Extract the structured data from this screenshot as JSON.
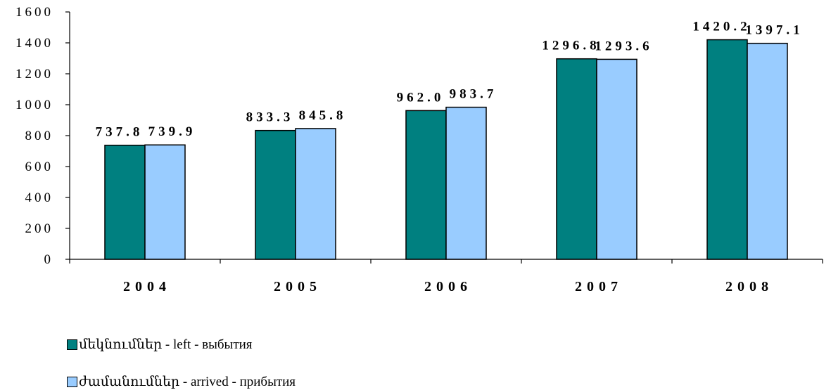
{
  "chart_data": {
    "type": "bar",
    "categories": [
      "2004",
      "2005",
      "2006",
      "2007",
      "2008"
    ],
    "series": [
      {
        "name": "մեկնումներ - left - выбытия",
        "values": [
          737.8,
          833.3,
          962.0,
          1296.8,
          1420.2
        ],
        "color": "#008080",
        "labels": [
          "737.8",
          "833.3",
          "962.0",
          "1296.8",
          "1420.2"
        ]
      },
      {
        "name": "ժամանումներ - arrived - прибытия",
        "values": [
          739.9,
          845.8,
          983.7,
          1293.6,
          1397.1
        ],
        "color": "#99CCFF",
        "labels": [
          "739.9",
          "845.8",
          "983.7",
          "1293.6",
          "1397.1"
        ]
      }
    ],
    "yticks": [
      "0",
      "200",
      "400",
      "600",
      "800",
      "1000",
      "1200",
      "1400",
      "1600"
    ],
    "ylim": [
      0,
      1600
    ],
    "grid": false,
    "legend": "bottom-left"
  }
}
